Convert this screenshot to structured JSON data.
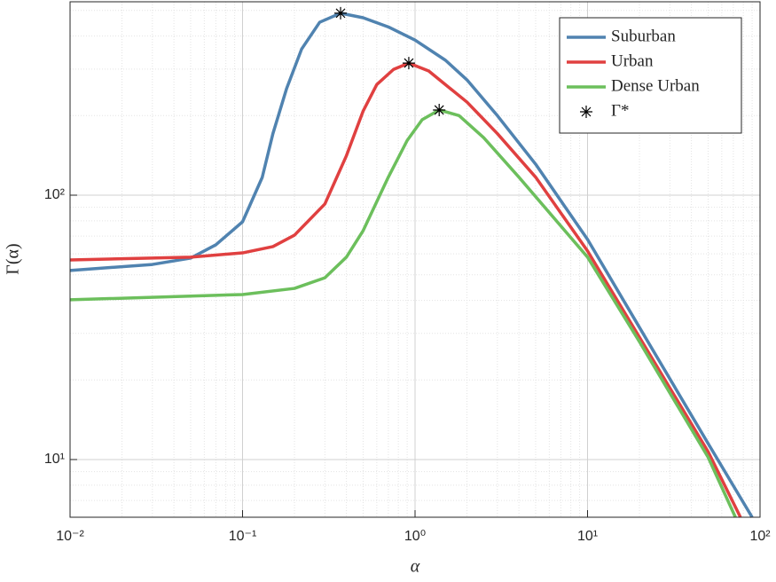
{
  "chart_data": {
    "type": "line",
    "xlabel": "α",
    "ylabel": "Γ(α)",
    "xscale": "log",
    "yscale": "log",
    "grid": true,
    "minor_grid": true,
    "legend": "upper right",
    "xlim": [
      0.01,
      100
    ],
    "ylim": [
      6.05,
      539
    ],
    "xticks": [
      {
        "value": 0.01,
        "label": "10⁻²"
      },
      {
        "value": 0.1,
        "label": "10⁻¹"
      },
      {
        "value": 1,
        "label": "10⁰"
      },
      {
        "value": 10,
        "label": "10¹"
      },
      {
        "value": 100,
        "label": "10²"
      }
    ],
    "yticks": [
      {
        "value": 10,
        "label": "10¹"
      },
      {
        "value": 100,
        "label": "10²"
      }
    ],
    "series": [
      {
        "name": "Suburban",
        "color": "#5083b0",
        "x": [
          0.01,
          0.03,
          0.05,
          0.07,
          0.1,
          0.13,
          0.15,
          0.18,
          0.22,
          0.28,
          0.37,
          0.5,
          0.7,
          1,
          1.5,
          2,
          3,
          5,
          10,
          20,
          50,
          90
        ],
        "values": [
          51.9,
          54.7,
          57.8,
          64.9,
          79.3,
          116.7,
          171,
          253,
          357,
          451,
          488,
          469,
          433,
          386,
          324,
          273,
          200,
          131,
          68,
          31.6,
          11.5,
          6.05
        ]
      },
      {
        "name": "Urban",
        "color": "#e04040",
        "x": [
          0.01,
          0.05,
          0.1,
          0.15,
          0.2,
          0.3,
          0.4,
          0.5,
          0.6,
          0.75,
          0.92,
          1.2,
          1.5,
          2,
          3,
          5,
          10,
          20,
          50,
          77
        ],
        "values": [
          56.9,
          58.3,
          60.5,
          63.9,
          70.6,
          92.6,
          141,
          208,
          262,
          299,
          316,
          295,
          262,
          225,
          171,
          117,
          61.5,
          29,
          10.7,
          6.05
        ]
      },
      {
        "name": "Dense Urban",
        "color": "#6cbf5c",
        "x": [
          0.01,
          0.1,
          0.2,
          0.3,
          0.4,
          0.5,
          0.7,
          0.9,
          1.1,
          1.38,
          1.8,
          2.5,
          4,
          10,
          20,
          50,
          72
        ],
        "values": [
          40.2,
          42.1,
          44.4,
          48.7,
          58.3,
          73.4,
          117,
          161,
          193,
          210,
          200,
          165,
          117,
          58.3,
          27.9,
          10.2,
          6.05
        ]
      }
    ],
    "markers": {
      "name": "Γ*",
      "color": "#000000",
      "x": [
        0.37,
        0.92,
        1.38
      ],
      "values": [
        488,
        316,
        210
      ]
    }
  }
}
